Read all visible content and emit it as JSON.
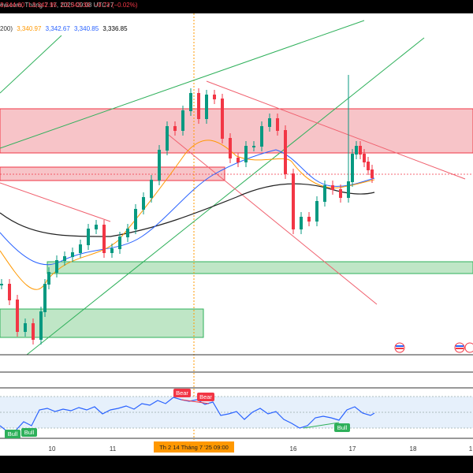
{
  "header": {
    "source_fragment": "ew.com, Tháng 7 17, 2025 09:08 UTC+7",
    "ohlc": {
      "h": "3,344.60",
      "l": "L3,342.95",
      "c": "C3,343.30",
      "chg": "−0.72 (−0.02%)"
    },
    "ma": {
      "period_fragment": "200)",
      "v1": "3,340.97",
      "v2": "3,342.67",
      "v3": "3,340.85",
      "v4": "3,336.85"
    }
  },
  "colors": {
    "bull": "#089981",
    "bear": "#f23645",
    "ema_fast": "#2962ff",
    "ema_mid": "#ff9800",
    "ema_slow": "#000000",
    "zone_red": "#f7c4c8",
    "zone_green": "#bfe6c6",
    "rsi": "#2962ff",
    "rsi_band": "#e6f0fb",
    "trendline_green": "#2eb05a",
    "trendline_red": "#f0606e"
  },
  "xaxis": {
    "labels": [
      "10",
      "11",
      "16",
      "17",
      "18",
      "1"
    ],
    "crosshair_label": "Th 2 14 Tháng 7 '25   09:00"
  },
  "rsi": {
    "badges": [
      "Bear",
      "Bear",
      "Bull",
      "Bull",
      "Bull"
    ]
  },
  "icons": [
    "flag-icon",
    "flag-icon"
  ]
}
